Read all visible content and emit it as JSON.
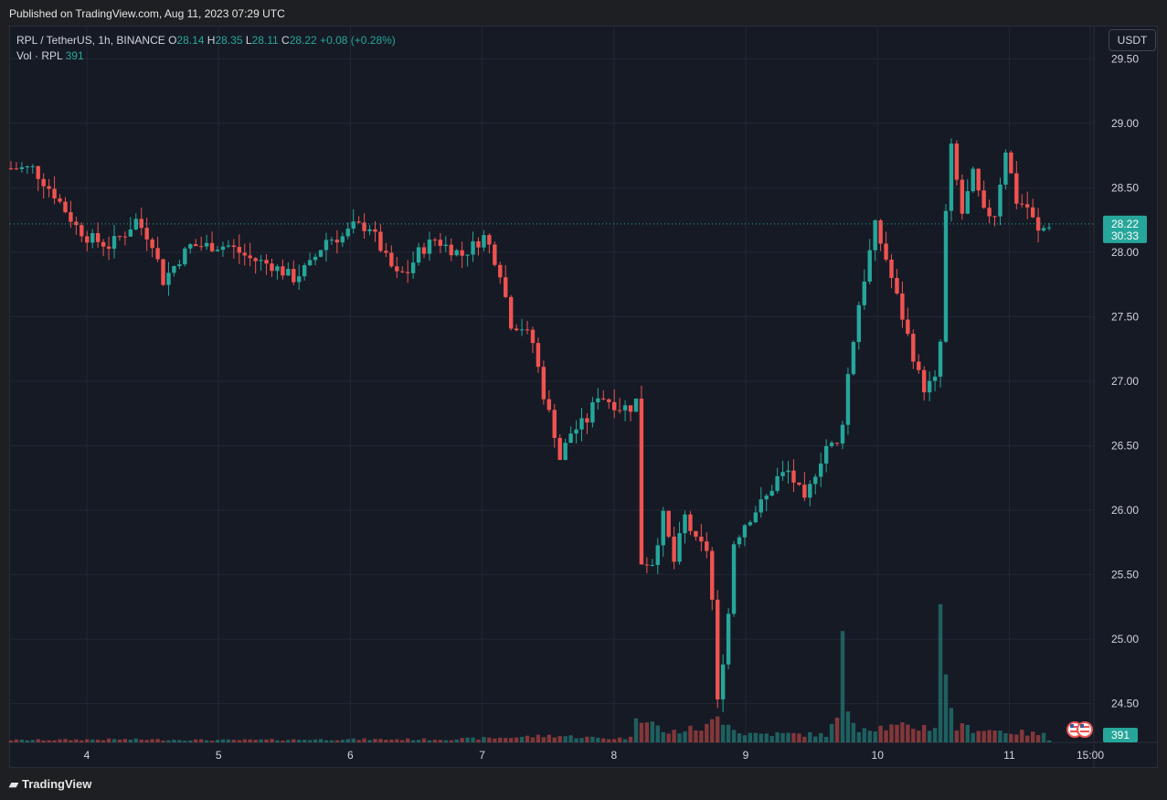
{
  "header": {
    "published": "Published on TradingView.com, Aug 11, 2023 07:29 UTC"
  },
  "legend": {
    "symbol": "RPL / TetherUS, 1h, BINANCE",
    "o_label": "O",
    "o_value": "28.14",
    "h_label": "H",
    "h_value": "28.35",
    "l_label": "L",
    "l_value": "28.11",
    "c_label": "C",
    "c_value": "28.22",
    "change": "+0.08 (+0.28%)",
    "vol_label": "Vol · RPL",
    "vol_value": "391"
  },
  "currency_button": "USDT",
  "price_badge": {
    "price": "28.22",
    "countdown": "30:33"
  },
  "volume_badge": "391",
  "footer": {
    "brand": "TradingView"
  },
  "colors": {
    "up": "#26a69a",
    "down": "#ef5350",
    "background": "#161a25",
    "grid": "#232734"
  },
  "chart_data": {
    "type": "candlestick",
    "interval": "1h",
    "y_ticks": [
      "29.50",
      "29.00",
      "28.50",
      "28.00",
      "27.50",
      "27.00",
      "26.50",
      "26.00",
      "25.50",
      "25.00",
      "24.50"
    ],
    "y_range": [
      24.2,
      29.75
    ],
    "x_ticks": [
      "4",
      "5",
      "6",
      "7",
      "8",
      "9",
      "10",
      "11",
      "15:00"
    ],
    "last_price": 28.22,
    "path": [
      [
        0,
        28.65
      ],
      [
        4,
        28.65
      ],
      [
        8,
        28.45
      ],
      [
        12,
        28.2
      ],
      [
        14,
        28.12
      ],
      [
        18,
        28.05
      ],
      [
        21,
        28.15
      ],
      [
        23,
        28.25
      ],
      [
        26,
        28.08
      ],
      [
        28,
        27.78
      ],
      [
        31,
        27.95
      ],
      [
        33,
        28.05
      ],
      [
        36,
        28.05
      ],
      [
        40,
        28.05
      ],
      [
        44,
        27.95
      ],
      [
        48,
        27.9
      ],
      [
        52,
        27.8
      ],
      [
        55,
        27.9
      ],
      [
        58,
        28.1
      ],
      [
        61,
        28.12
      ],
      [
        63,
        28.2
      ],
      [
        66,
        28.2
      ],
      [
        69,
        27.95
      ],
      [
        71,
        27.82
      ],
      [
        73,
        27.85
      ],
      [
        75,
        28.0
      ],
      [
        78,
        28.1
      ],
      [
        80,
        28.05
      ],
      [
        83,
        27.98
      ],
      [
        85,
        28.05
      ],
      [
        87,
        28.12
      ],
      [
        88,
        28.05
      ],
      [
        90,
        27.85
      ],
      [
        92,
        27.45
      ],
      [
        94,
        27.42
      ],
      [
        96,
        27.3
      ],
      [
        98,
        26.9
      ],
      [
        100,
        26.6
      ],
      [
        101,
        26.4
      ],
      [
        103,
        26.6
      ],
      [
        106,
        26.7
      ],
      [
        108,
        26.9
      ],
      [
        110,
        26.85
      ],
      [
        112,
        26.8
      ],
      [
        114,
        26.8
      ],
      [
        115,
        26.85
      ],
      [
        116,
        25.6
      ],
      [
        118,
        25.6
      ],
      [
        120,
        25.95
      ],
      [
        122,
        25.6
      ],
      [
        124,
        25.95
      ],
      [
        126,
        25.75
      ],
      [
        128,
        25.7
      ],
      [
        129,
        25.3
      ],
      [
        130,
        24.5
      ],
      [
        132,
        25.2
      ],
      [
        133,
        25.75
      ],
      [
        135,
        25.9
      ],
      [
        137,
        26.0
      ],
      [
        139,
        26.1
      ],
      [
        141,
        26.25
      ],
      [
        143,
        26.3
      ],
      [
        145,
        26.15
      ],
      [
        146,
        26.05
      ],
      [
        148,
        26.3
      ],
      [
        150,
        26.5
      ],
      [
        152,
        26.5
      ],
      [
        153,
        26.7
      ],
      [
        154,
        27.05
      ],
      [
        156,
        27.6
      ],
      [
        158,
        28.0
      ],
      [
        159,
        28.2
      ],
      [
        161,
        27.95
      ],
      [
        163,
        27.65
      ],
      [
        165,
        27.35
      ],
      [
        167,
        27.05
      ],
      [
        168,
        26.95
      ],
      [
        170,
        27.0
      ],
      [
        171,
        27.3
      ],
      [
        172,
        28.3
      ],
      [
        173,
        28.8
      ],
      [
        175,
        28.3
      ],
      [
        177,
        28.6
      ],
      [
        179,
        28.3
      ],
      [
        181,
        28.3
      ],
      [
        183,
        28.8
      ],
      [
        185,
        28.4
      ],
      [
        187,
        28.35
      ],
      [
        189,
        28.15
      ],
      [
        191,
        28.22
      ]
    ],
    "volume_path": [
      [
        0,
        3
      ],
      [
        20,
        4
      ],
      [
        40,
        3
      ],
      [
        60,
        4
      ],
      [
        80,
        4
      ],
      [
        90,
        6
      ],
      [
        100,
        9
      ],
      [
        110,
        5
      ],
      [
        114,
        6
      ],
      [
        115,
        40
      ],
      [
        117,
        35
      ],
      [
        120,
        12
      ],
      [
        128,
        20
      ],
      [
        130,
        32
      ],
      [
        132,
        30
      ],
      [
        134,
        12
      ],
      [
        150,
        10
      ],
      [
        152,
        30
      ],
      [
        153,
        115
      ],
      [
        154,
        45
      ],
      [
        156,
        20
      ],
      [
        170,
        20
      ],
      [
        171,
        210
      ],
      [
        172,
        75
      ],
      [
        174,
        20
      ],
      [
        190,
        10
      ],
      [
        191,
        3
      ]
    ],
    "volume_max": 210
  }
}
